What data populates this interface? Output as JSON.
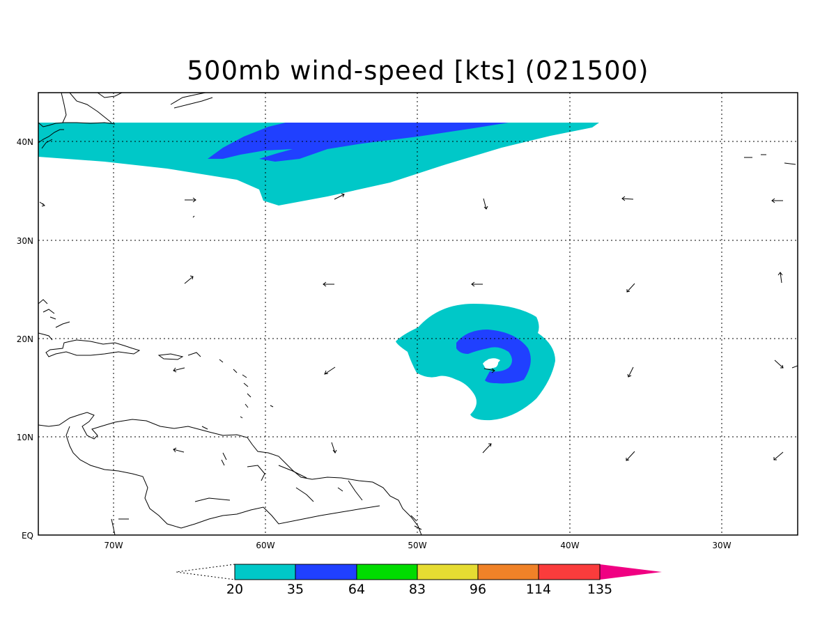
{
  "title": "500mb wind-speed [kts] (021500)",
  "lat_labels": [
    "40N",
    "30N",
    "20N",
    "10N",
    "EQ"
  ],
  "lon_labels": [
    "70W",
    "60W",
    "50W",
    "40W",
    "30W"
  ],
  "colorbar": {
    "thresholds": [
      "20",
      "35",
      "64",
      "83",
      "96",
      "114",
      "135"
    ],
    "colors": [
      "#00c8c8",
      "#2040ff",
      "#00dc00",
      "#e6dc32",
      "#f08228",
      "#fa3c3c",
      "#f00082"
    ],
    "lower_extension": "below 20 (unshaded)",
    "upper_extension_color": "#f00082"
  },
  "shading_colors": {
    "20-35": "#00c8c8",
    "35-64": "#2040ff"
  }
}
